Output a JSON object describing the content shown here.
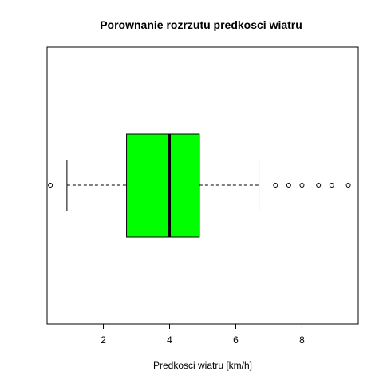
{
  "chart_data": {
    "type": "boxplot",
    "orientation": "horizontal",
    "title": "Porownanie rozrzutu predkosci wiatru",
    "xlabel": "Predkosci wiatru [km/h]",
    "ylabel": "",
    "xlim": [
      0.3,
      9.7
    ],
    "ticks": [
      2,
      4,
      6,
      8
    ],
    "tick_labels": [
      "2",
      "4",
      "6",
      "8"
    ],
    "box": {
      "whisker_low": 0.9,
      "q1": 2.7,
      "median": 4.0,
      "q3": 4.9,
      "whisker_high": 6.7,
      "outliers": [
        0.4,
        7.2,
        7.6,
        8.0,
        8.5,
        8.9,
        9.4
      ],
      "fill_color": "#00ff00"
    },
    "grid": false,
    "legend": "none"
  }
}
